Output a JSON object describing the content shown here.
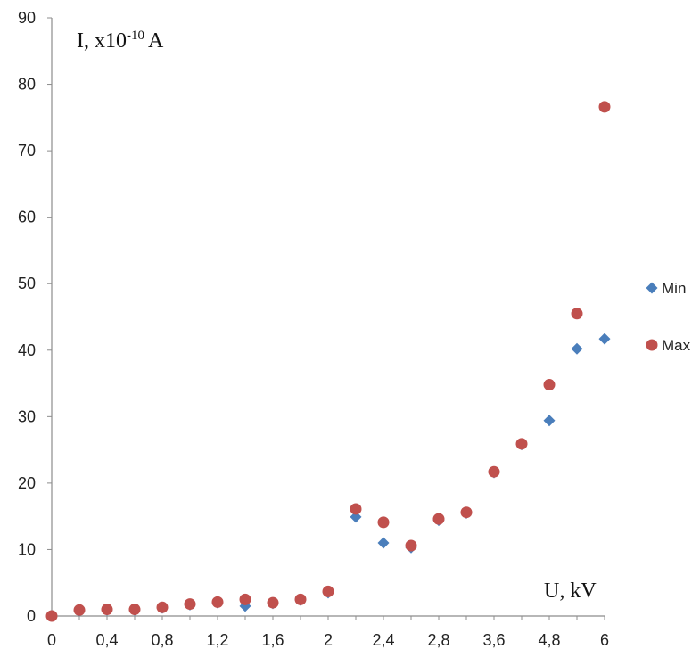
{
  "chart_data": {
    "type": "scatter",
    "xlabel": "U, kV",
    "ylabel": {
      "base": "I, x10",
      "exp": "-10",
      "unit": "A"
    },
    "ylim": [
      0,
      90
    ],
    "yticks": [
      "0",
      "10",
      "20",
      "30",
      "40",
      "50",
      "60",
      "70",
      "80",
      "90"
    ],
    "xticks": [
      "0",
      "0,4",
      "0,8",
      "1,2",
      "1,6",
      "2",
      "2,4",
      "2,8",
      "3,6",
      "4,8",
      "6"
    ],
    "categories": [
      "0",
      "0,2",
      "0,4",
      "0,6",
      "0,8",
      "1",
      "1,2",
      "1,4",
      "1,6",
      "1,8",
      "2",
      "2,2",
      "2,4",
      "2,6",
      "2,8",
      "3,2",
      "3,6",
      "4,2",
      "4,8",
      "5,4",
      "6"
    ],
    "grid": false,
    "legend_position": "right",
    "series": [
      {
        "name": "Min",
        "marker": "diamond",
        "color": "#4a7ebb",
        "values": [
          0,
          0.8,
          0.9,
          0.9,
          1.2,
          1.7,
          2.0,
          1.5,
          1.9,
          2.4,
          3.5,
          14.9,
          11.0,
          10.3,
          14.4,
          15.5,
          21.6,
          25.8,
          29.4,
          40.2,
          41.7
        ]
      },
      {
        "name": "Max",
        "marker": "circle",
        "color": "#c0504d",
        "values": [
          0,
          0.9,
          1.0,
          1.0,
          1.3,
          1.8,
          2.1,
          2.5,
          2.0,
          2.5,
          3.7,
          16.1,
          14.1,
          10.6,
          14.6,
          15.6,
          21.7,
          25.9,
          34.8,
          45.5,
          76.6
        ]
      }
    ]
  }
}
